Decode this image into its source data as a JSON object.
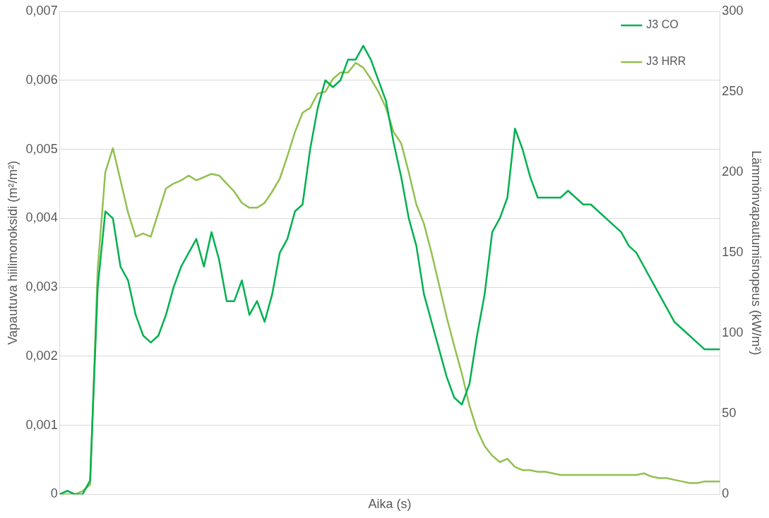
{
  "chart_data": {
    "type": "line",
    "xlabel": "Aika (s)",
    "ylabel": "Vapautuva hiilimonoksidi (m²/m²)",
    "y2label": "Lämmönvapautumisnopeus (kW/m²)",
    "categories": [
      null,
      null,
      null,
      null,
      null,
      null,
      null,
      null,
      null,
      null,
      null,
      null,
      null,
      null,
      null,
      null,
      null,
      null,
      null,
      null,
      null,
      null,
      null,
      null,
      null,
      null,
      null,
      null,
      null,
      null,
      null,
      null,
      null,
      null,
      null,
      null,
      null,
      null,
      null,
      null,
      null,
      null,
      null,
      null,
      null,
      null,
      null,
      null,
      null,
      null,
      null,
      null,
      null,
      null,
      null,
      null,
      null,
      null,
      null,
      null,
      null,
      null,
      null,
      null,
      null,
      null,
      null,
      null,
      null,
      null,
      null,
      null,
      null,
      null,
      null,
      null,
      null,
      null,
      null,
      null,
      null,
      null,
      null,
      null,
      null,
      null,
      null,
      null
    ],
    "ylim": [
      0,
      0.007
    ],
    "yticks": [
      0,
      {
        "value": 0.001,
        "label": "0,001"
      },
      {
        "value": 0.002,
        "label": "0,002"
      },
      {
        "value": 0.003,
        "label": "0,003"
      },
      {
        "value": 0.004,
        "label": "0,004"
      },
      {
        "value": 0.005,
        "label": "0,005"
      },
      {
        "value": 0.006,
        "label": "0,006"
      },
      {
        "value": 0.007,
        "label": "0,007"
      }
    ],
    "y2lim": [
      0,
      300
    ],
    "y2ticks": [
      0,
      50,
      100,
      150,
      200,
      250,
      300
    ],
    "grid": "y",
    "legend": "top right",
    "marker": "none",
    "line_style": "solid",
    "tick_labels": "y",
    "series": [
      {
        "name": "J3 CO",
        "color": "#00b050",
        "values": [
          0,
          5e-05,
          0,
          0,
          0.0002,
          0.003,
          0.0041,
          0.004,
          0.0033,
          0.0031,
          0.0026,
          0.0023,
          0.0022,
          0.0023,
          0.0026,
          0.003,
          0.0033,
          0.0035,
          0.0037,
          0.0033,
          0.0038,
          0.0034,
          0.0028,
          0.0028,
          0.0031,
          0.0026,
          0.0028,
          0.0025,
          0.0029,
          0.0035,
          0.0037,
          0.0041,
          0.0042,
          0.005,
          0.0056,
          0.006,
          0.0059,
          0.006,
          0.0063,
          0.0063,
          0.0065,
          0.0063,
          0.006,
          0.0057,
          0.0051,
          0.0046,
          0.004,
          0.0036,
          0.0029,
          0.0025,
          0.0021,
          0.0017,
          0.0014,
          0.0013,
          0.0016,
          0.0023,
          0.0029,
          0.0038,
          0.004,
          0.0043,
          0.0053,
          0.005,
          0.0046,
          0.0043,
          0.0043,
          0.0043,
          0.0043,
          0.0044,
          0.0043,
          0.0042,
          0.0042,
          0.0041,
          0.004,
          0.0039,
          0.0038,
          0.0036,
          0.0035,
          0.0033,
          0.0031,
          0.0029,
          0.0027,
          0.0025,
          0.0024,
          0.0023,
          0.0022,
          0.0021,
          0.0021,
          0.0021
        ]
      },
      {
        "name": "J3 HRR",
        "color": "#92c050",
        "axis": "y2",
        "values": [
          0,
          0,
          0,
          2,
          6,
          140,
          200,
          215,
          195,
          175,
          160,
          162,
          160,
          175,
          190,
          193,
          195,
          198,
          195,
          197,
          199,
          198,
          193,
          188,
          181,
          178,
          178,
          181,
          188,
          196,
          210,
          225,
          237,
          240,
          249,
          250,
          258,
          262,
          262,
          268,
          265,
          258,
          250,
          240,
          225,
          218,
          200,
          180,
          168,
          150,
          130,
          110,
          92,
          75,
          55,
          40,
          30,
          24,
          20,
          22,
          17,
          15,
          15,
          14,
          14,
          13,
          12,
          12,
          12,
          12,
          12,
          12,
          12,
          12,
          12,
          12,
          12,
          13,
          11,
          10,
          10,
          9,
          8,
          7,
          7,
          8,
          8,
          8
        ]
      }
    ]
  }
}
